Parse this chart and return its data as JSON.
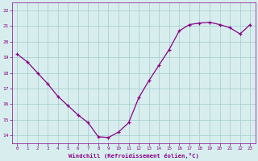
{
  "x": [
    0,
    1,
    2,
    3,
    4,
    5,
    6,
    7,
    8,
    9,
    10,
    11,
    12,
    13,
    14,
    15,
    16,
    17,
    18,
    19,
    20,
    21,
    22,
    23
  ],
  "y": [
    19.2,
    18.7,
    18.0,
    17.3,
    16.5,
    15.9,
    15.3,
    14.8,
    13.9,
    13.85,
    14.2,
    14.8,
    16.4,
    17.5,
    18.5,
    19.5,
    20.7,
    21.1,
    21.2,
    21.25,
    21.1,
    20.9,
    20.5,
    21.1
  ],
  "line_color": "#880088",
  "marker": "+",
  "marker_color": "#880088",
  "bg_color": "#d8eeee",
  "grid_color": "#aad0d0",
  "axis_color": "#880088",
  "tick_color": "#880088",
  "xlabel": "Windchill (Refroidissement éolien,°C)",
  "xlabel_color": "#880088",
  "ytick_labels": [
    "14",
    "15",
    "16",
    "17",
    "18",
    "19",
    "20",
    "21",
    "22"
  ],
  "ytick_values": [
    14,
    15,
    16,
    17,
    18,
    19,
    20,
    21,
    22
  ],
  "ylim": [
    13.5,
    22.5
  ],
  "xlim": [
    -0.5,
    23.5
  ]
}
